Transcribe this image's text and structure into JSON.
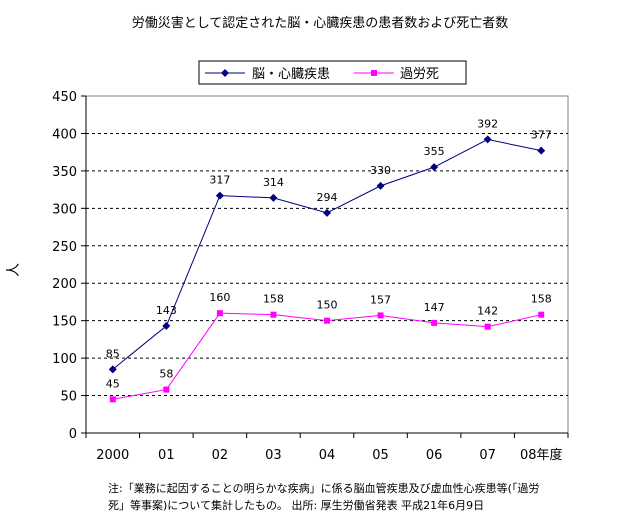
{
  "chart_data": {
    "type": "line",
    "title": "労働災害として認定された脳・心臓疾患の患者数および死亡者数",
    "ylabel": "人",
    "xlabel": "",
    "categories": [
      "2000",
      "01",
      "02",
      "03",
      "04",
      "05",
      "06",
      "07",
      "08年度"
    ],
    "ylim": [
      0,
      450
    ],
    "yticks": [
      0,
      50,
      100,
      150,
      200,
      250,
      300,
      350,
      400,
      450
    ],
    "grid": "horizontal dashed",
    "legend_position": "top",
    "series": [
      {
        "name": "脳・心臓疾患",
        "values": [
          85,
          143,
          317,
          314,
          294,
          330,
          355,
          392,
          377
        ],
        "labels": [
          "85",
          "143",
          "317",
          "314",
          "294",
          "330",
          "355",
          "392",
          "377"
        ],
        "color": "#000080",
        "marker": "diamond"
      },
      {
        "name": "過労死",
        "values": [
          45,
          58,
          160,
          158,
          150,
          157,
          147,
          142,
          158
        ],
        "labels": [
          "45",
          "58",
          "160",
          "158",
          "150",
          "157",
          "147",
          "142",
          "158"
        ],
        "color": "#ff00ff",
        "marker": "square"
      }
    ]
  },
  "footnote": {
    "line1": "注:「業務に起因することの明らかな疾病」に係る脳血管疾患及び虚血性心疾患等(「過労",
    "line2": "死」等事案)について集計したもの。 出所: 厚生労働省発表 平成21年6月9日"
  }
}
